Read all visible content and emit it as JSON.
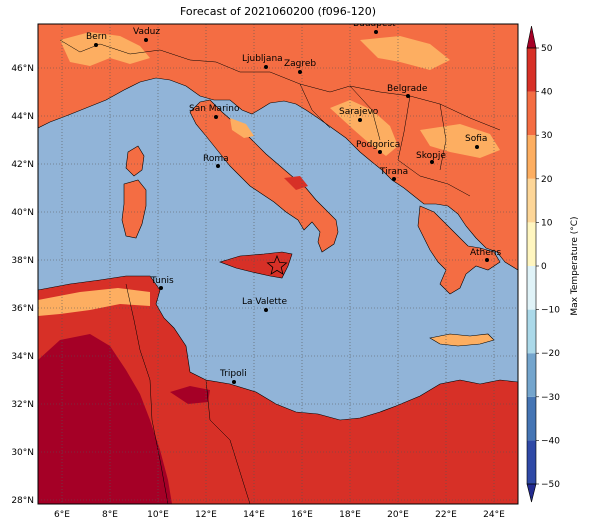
{
  "title": "Forecast of 2021060200 (f096-120)",
  "colorbar": {
    "label": "Max Temperature (°C)",
    "ticks": [
      "−50",
      "−40",
      "−30",
      "−20",
      "−10",
      "0",
      "10",
      "20",
      "30",
      "40",
      "50"
    ],
    "colors": [
      "#222a8f",
      "#2f49a6",
      "#4575b4",
      "#74a5cd",
      "#abd9e9",
      "#e0f3f8",
      "#fff6c0",
      "#fdd698",
      "#fdae61",
      "#f46d43",
      "#d73027",
      "#a50026"
    ]
  },
  "axes": {
    "lon_labels": [
      "6°E",
      "8°E",
      "10°E",
      "12°E",
      "14°E",
      "16°E",
      "18°E",
      "20°E",
      "22°E",
      "24°E"
    ],
    "lat_labels": [
      "46°N",
      "44°N",
      "42°N",
      "40°N",
      "38°N",
      "36°N",
      "34°N",
      "32°N",
      "30°N",
      "28°N"
    ]
  },
  "cities": [
    {
      "name": "Bern"
    },
    {
      "name": "Vaduz"
    },
    {
      "name": "Budapest"
    },
    {
      "name": "Ljubljana"
    },
    {
      "name": "Zagreb"
    },
    {
      "name": "Belgrade"
    },
    {
      "name": "San Marino"
    },
    {
      "name": "Sarajevo"
    },
    {
      "name": "Podgorica"
    },
    {
      "name": "Sofia"
    },
    {
      "name": "Skopje"
    },
    {
      "name": "Roma"
    },
    {
      "name": "Tirana"
    },
    {
      "name": "Athens"
    },
    {
      "name": "Tunis"
    },
    {
      "name": "La Valette"
    },
    {
      "name": "Tripoli"
    }
  ],
  "marker": {
    "symbol": "star",
    "color": "#d73027"
  },
  "colors": {
    "sea": "#91b4d8",
    "land_warm": "#f46d43",
    "land_mild": "#fdae61",
    "land_hot": "#d73027",
    "land_very_hot": "#a50026"
  }
}
